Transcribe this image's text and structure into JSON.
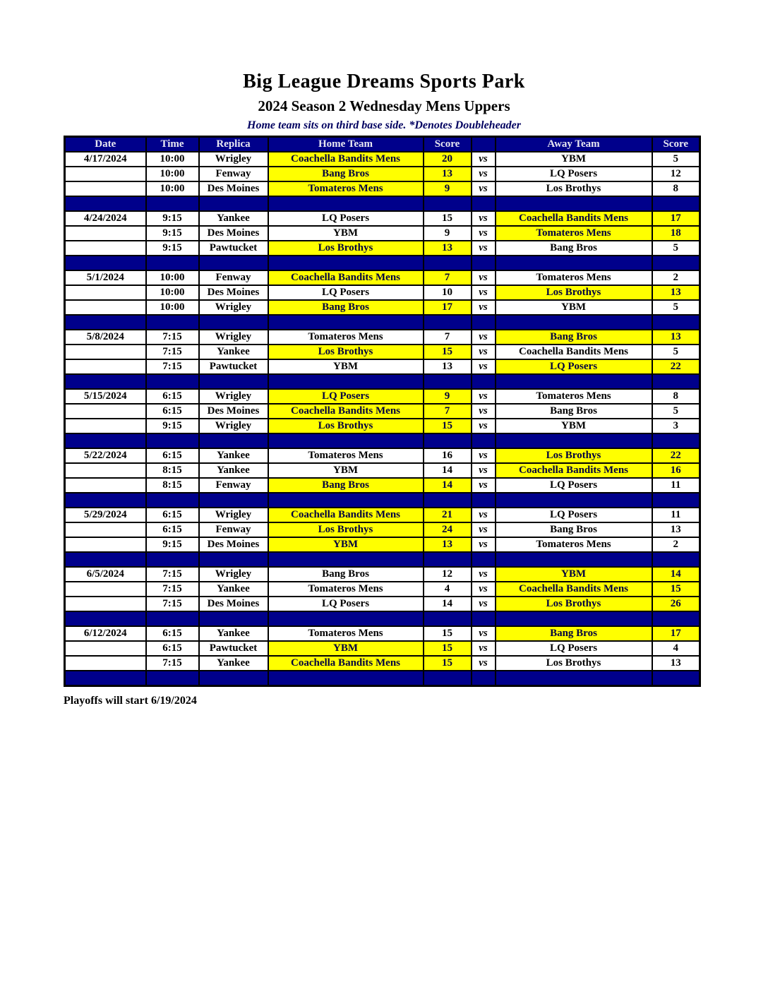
{
  "page": {
    "title": "Big League Dreams Sports Park",
    "subtitle": "2024 Season 2 Wednesday Mens Uppers",
    "note": "Home team sits on third base side.  *Denotes Doubleheader",
    "footer": "Playoffs will start 6/19/2024"
  },
  "colors": {
    "header_bg": "#00008B",
    "header_text": "#E8E8F2",
    "highlight": "#FFFF00",
    "highlight_text": "#000040",
    "spacer_bg": "#00008B",
    "note_text": "#000060"
  },
  "table": {
    "headers": [
      "Date",
      "Time",
      "Replica",
      "Home Team",
      "Score",
      "",
      "Away Team",
      "Score"
    ],
    "vs_label": "vs",
    "weeks": [
      {
        "date": "4/17/2024",
        "games": [
          {
            "time": "10:00",
            "replica": "Wrigley",
            "home": "Coachella Bandits Mens",
            "home_score": "20",
            "away": "YBM",
            "away_score": "5",
            "winner": "home"
          },
          {
            "time": "10:00",
            "replica": "Fenway",
            "home": "Bang Bros",
            "home_score": "13",
            "away": "LQ Posers",
            "away_score": "12",
            "winner": "home"
          },
          {
            "time": "10:00",
            "replica": "Des Moines",
            "home": "Tomateros Mens",
            "home_score": "9",
            "away": "Los Brothys",
            "away_score": "8",
            "winner": "home"
          }
        ]
      },
      {
        "date": "4/24/2024",
        "games": [
          {
            "time": "9:15",
            "replica": "Yankee",
            "home": "LQ Posers",
            "home_score": "15",
            "away": "Coachella Bandits Mens",
            "away_score": "17",
            "winner": "away"
          },
          {
            "time": "9:15",
            "replica": "Des Moines",
            "home": "YBM",
            "home_score": "9",
            "away": "Tomateros Mens",
            "away_score": "18",
            "winner": "away"
          },
          {
            "time": "9:15",
            "replica": "Pawtucket",
            "home": "Los Brothys",
            "home_score": "13",
            "away": "Bang Bros",
            "away_score": "5",
            "winner": "home"
          }
        ]
      },
      {
        "date": "5/1/2024",
        "games": [
          {
            "time": "10:00",
            "replica": "Fenway",
            "home": "Coachella Bandits Mens",
            "home_score": "7",
            "away": "Tomateros Mens",
            "away_score": "2",
            "winner": "home"
          },
          {
            "time": "10:00",
            "replica": "Des Moines",
            "home": "LQ Posers",
            "home_score": "10",
            "away": "Los Brothys",
            "away_score": "13",
            "winner": "away"
          },
          {
            "time": "10:00",
            "replica": "Wrigley",
            "home": "Bang Bros",
            "home_score": "17",
            "away": "YBM",
            "away_score": "5",
            "winner": "home"
          }
        ]
      },
      {
        "date": "5/8/2024",
        "games": [
          {
            "time": "7:15",
            "replica": "Wrigley",
            "home": "Tomateros Mens",
            "home_score": "7",
            "away": "Bang Bros",
            "away_score": "13",
            "winner": "away"
          },
          {
            "time": "7:15",
            "replica": "Yankee",
            "home": "Los Brothys",
            "home_score": "15",
            "away": "Coachella Bandits Mens",
            "away_score": "5",
            "winner": "home"
          },
          {
            "time": "7:15",
            "replica": "Pawtucket",
            "home": "YBM",
            "home_score": "13",
            "away": "LQ Posers",
            "away_score": "22",
            "winner": "away"
          }
        ]
      },
      {
        "date": "5/15/2024",
        "games": [
          {
            "time": "6:15",
            "replica": "Wrigley",
            "home": "LQ Posers",
            "home_score": "9",
            "away": "Tomateros Mens",
            "away_score": "8",
            "winner": "home"
          },
          {
            "time": "6:15",
            "replica": "Des Moines",
            "home": "Coachella Bandits Mens",
            "home_score": "7",
            "away": "Bang Bros",
            "away_score": "5",
            "winner": "home"
          },
          {
            "time": "9:15",
            "replica": "Wrigley",
            "home": "Los Brothys",
            "home_score": "15",
            "away": "YBM",
            "away_score": "3",
            "winner": "home"
          }
        ]
      },
      {
        "date": "5/22/2024",
        "games": [
          {
            "time": "6:15",
            "replica": "Yankee",
            "home": "Tomateros Mens",
            "home_score": "16",
            "away": "Los Brothys",
            "away_score": "22",
            "winner": "away"
          },
          {
            "time": "8:15",
            "replica": "Yankee",
            "home": "YBM",
            "home_score": "14",
            "away": "Coachella Bandits Mens",
            "away_score": "16",
            "winner": "away"
          },
          {
            "time": "8:15",
            "replica": "Fenway",
            "home": "Bang Bros",
            "home_score": "14",
            "away": "LQ Posers",
            "away_score": "11",
            "winner": "home"
          }
        ]
      },
      {
        "date": "5/29/2024",
        "games": [
          {
            "time": "6:15",
            "replica": "Wrigley",
            "home": "Coachella Bandits Mens",
            "home_score": "21",
            "away": "LQ Posers",
            "away_score": "11",
            "winner": "home"
          },
          {
            "time": "6:15",
            "replica": "Fenway",
            "home": "Los Brothys",
            "home_score": "24",
            "away": "Bang Bros",
            "away_score": "13",
            "winner": "home"
          },
          {
            "time": "9:15",
            "replica": "Des Moines",
            "home": "YBM",
            "home_score": "13",
            "away": "Tomateros Mens",
            "away_score": "2",
            "winner": "home"
          }
        ]
      },
      {
        "date": "6/5/2024",
        "games": [
          {
            "time": "7:15",
            "replica": "Wrigley",
            "home": "Bang Bros",
            "home_score": "12",
            "away": "YBM",
            "away_score": "14",
            "winner": "away"
          },
          {
            "time": "7:15",
            "replica": "Yankee",
            "home": "Tomateros Mens",
            "home_score": "4",
            "away": "Coachella Bandits Mens",
            "away_score": "15",
            "winner": "away"
          },
          {
            "time": "7:15",
            "replica": "Des Moines",
            "home": "LQ Posers",
            "home_score": "14",
            "away": "Los Brothys",
            "away_score": "26",
            "winner": "away"
          }
        ]
      },
      {
        "date": "6/12/2024",
        "games": [
          {
            "time": "6:15",
            "replica": "Yankee",
            "home": "Tomateros Mens",
            "home_score": "15",
            "away": "Bang Bros",
            "away_score": "17",
            "winner": "away"
          },
          {
            "time": "6:15",
            "replica": "Pawtucket",
            "home": "YBM",
            "home_score": "15",
            "away": "LQ Posers",
            "away_score": "4",
            "winner": "home"
          },
          {
            "time": "7:15",
            "replica": "Yankee",
            "home": "Coachella Bandits Mens",
            "home_score": "15",
            "away": "Los Brothys",
            "away_score": "13",
            "winner": "home"
          }
        ]
      }
    ]
  }
}
